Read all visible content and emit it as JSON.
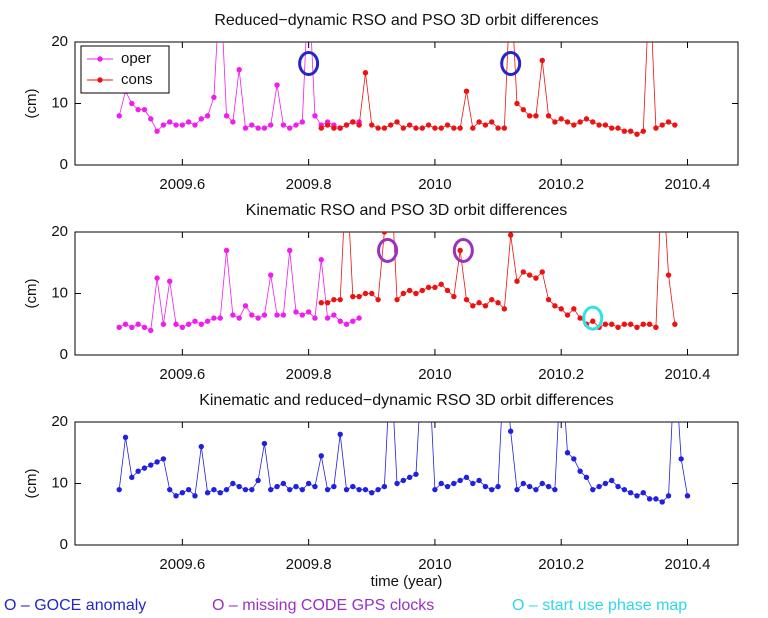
{
  "chart_data": [
    {
      "type": "line",
      "title": "Reduced−dynamic RSO and PSO 3D orbit differences",
      "ylabel": "(cm)",
      "xlim": [
        2009.43,
        2010.48
      ],
      "ylim": [
        0,
        20
      ],
      "xticks": [
        2009.6,
        2009.8,
        2010,
        2010.2,
        2010.4
      ],
      "yticks": [
        0,
        10,
        20
      ],
      "legend": "upper left",
      "series": [
        {
          "name": "oper",
          "color": "#f01cf0",
          "x": [
            2009.5,
            2009.51,
            2009.52,
            2009.53,
            2009.54,
            2009.55,
            2009.56,
            2009.57,
            2009.58,
            2009.59,
            2009.6,
            2009.61,
            2009.62,
            2009.63,
            2009.64,
            2009.65,
            2009.66,
            2009.67,
            2009.68,
            2009.69,
            2009.7,
            2009.71,
            2009.72,
            2009.73,
            2009.74,
            2009.75,
            2009.76,
            2009.77,
            2009.78,
            2009.79,
            2009.8,
            2009.81,
            2009.82,
            2009.83,
            2009.84,
            2009.85,
            2009.86,
            2009.87,
            2009.88
          ],
          "values": [
            8,
            12,
            10,
            9,
            9,
            7.5,
            5.5,
            6.5,
            7,
            6.5,
            6.5,
            7,
            6.5,
            7.5,
            8,
            11,
            30,
            8,
            7,
            15.5,
            6,
            6.5,
            6,
            6,
            6.5,
            13,
            6.5,
            6,
            6.5,
            7,
            30,
            8,
            6.5,
            7,
            6.5,
            6,
            6.5,
            7,
            7
          ]
        },
        {
          "name": "cons",
          "color": "#ee1111",
          "x": [
            2009.82,
            2009.83,
            2009.84,
            2009.85,
            2009.86,
            2009.87,
            2009.88,
            2009.89,
            2009.9,
            2009.91,
            2009.92,
            2009.93,
            2009.94,
            2009.95,
            2009.96,
            2009.97,
            2009.98,
            2009.99,
            2010,
            2010.01,
            2010.02,
            2010.03,
            2010.04,
            2010.05,
            2010.06,
            2010.07,
            2010.08,
            2010.09,
            2010.1,
            2010.11,
            2010.12,
            2010.13,
            2010.14,
            2010.15,
            2010.16,
            2010.17,
            2010.18,
            2010.19,
            2010.2,
            2010.21,
            2010.22,
            2010.23,
            2010.24,
            2010.25,
            2010.26,
            2010.27,
            2010.28,
            2010.29,
            2010.3,
            2010.31,
            2010.32,
            2010.33,
            2010.34,
            2010.35,
            2010.36,
            2010.37,
            2010.38
          ],
          "values": [
            6,
            6.5,
            6,
            6,
            6.5,
            7,
            6.5,
            15,
            6.5,
            6,
            6,
            6.5,
            7,
            6,
            6.5,
            6,
            6,
            6.5,
            6,
            6,
            6.5,
            6,
            6,
            12,
            6,
            7,
            6.5,
            7,
            6,
            6,
            30,
            10,
            9,
            8,
            8,
            17,
            8,
            7,
            7.5,
            7,
            6.5,
            7,
            7.5,
            7,
            6.5,
            6.5,
            6,
            6,
            5.5,
            5.5,
            5,
            5.5,
            30,
            6,
            6.5,
            7,
            6.5
          ]
        }
      ],
      "markers": [
        {
          "x": 2009.8,
          "y": 16.5,
          "color": "#2626c8"
        },
        {
          "x": 2010.12,
          "y": 16.5,
          "color": "#2626c8"
        }
      ]
    },
    {
      "type": "line",
      "title": "Kinematic RSO and PSO 3D orbit differences",
      "ylabel": "(cm)",
      "xlim": [
        2009.43,
        2010.48
      ],
      "ylim": [
        0,
        20
      ],
      "xticks": [
        2009.6,
        2009.8,
        2010,
        2010.2,
        2010.4
      ],
      "yticks": [
        0,
        10,
        20
      ],
      "series": [
        {
          "name": "oper",
          "color": "#f01cf0",
          "x": [
            2009.5,
            2009.51,
            2009.52,
            2009.53,
            2009.54,
            2009.55,
            2009.56,
            2009.57,
            2009.58,
            2009.59,
            2009.6,
            2009.61,
            2009.62,
            2009.63,
            2009.64,
            2009.65,
            2009.66,
            2009.67,
            2009.68,
            2009.69,
            2009.7,
            2009.71,
            2009.72,
            2009.73,
            2009.74,
            2009.75,
            2009.76,
            2009.77,
            2009.78,
            2009.79,
            2009.8,
            2009.81,
            2009.82,
            2009.83,
            2009.84,
            2009.85,
            2009.86,
            2009.87,
            2009.88
          ],
          "values": [
            4.5,
            5,
            4.5,
            5,
            4.5,
            4,
            12.5,
            5,
            12,
            5,
            4.5,
            5,
            5.5,
            5,
            5.5,
            6,
            6,
            17,
            6.5,
            6,
            8,
            6.5,
            6,
            6.5,
            13,
            6.5,
            6.5,
            17,
            7,
            6.5,
            7,
            6,
            15.5,
            6,
            6.5,
            5.5,
            5,
            5.5,
            6
          ]
        },
        {
          "name": "cons",
          "color": "#ee1111",
          "x": [
            2009.82,
            2009.83,
            2009.84,
            2009.85,
            2009.86,
            2009.87,
            2009.88,
            2009.89,
            2009.9,
            2009.91,
            2009.92,
            2009.93,
            2009.94,
            2009.95,
            2009.96,
            2009.97,
            2009.98,
            2009.99,
            2010,
            2010.01,
            2010.02,
            2010.03,
            2010.04,
            2010.05,
            2010.06,
            2010.07,
            2010.08,
            2010.09,
            2010.1,
            2010.11,
            2010.12,
            2010.13,
            2010.14,
            2010.15,
            2010.16,
            2010.17,
            2010.18,
            2010.19,
            2010.2,
            2010.21,
            2010.22,
            2010.23,
            2010.24,
            2010.25,
            2010.26,
            2010.27,
            2010.28,
            2010.29,
            2010.3,
            2010.31,
            2010.32,
            2010.33,
            2010.34,
            2010.35,
            2010.36,
            2010.37,
            2010.38
          ],
          "values": [
            8.5,
            8.5,
            9,
            9,
            30,
            9.5,
            9.5,
            10,
            10,
            9,
            20,
            30,
            9,
            10,
            10.5,
            10,
            10.5,
            11,
            11,
            11.5,
            10.5,
            9.5,
            17,
            9,
            8,
            8.5,
            8,
            9,
            8.5,
            7.5,
            19.5,
            12,
            13.5,
            13,
            12.5,
            13.5,
            9,
            8,
            7.5,
            6.5,
            7.5,
            6,
            5,
            5.5,
            4.5,
            5,
            5,
            4.5,
            5,
            5,
            4.5,
            5,
            5,
            4.5,
            30,
            13,
            5
          ]
        }
      ],
      "markers": [
        {
          "x": 2009.925,
          "y": 17,
          "color": "#9a30c0"
        },
        {
          "x": 2010.045,
          "y": 17,
          "color": "#9a30c0"
        },
        {
          "x": 2010.25,
          "y": 6,
          "color": "#30e0ea"
        }
      ]
    },
    {
      "type": "line",
      "title": "Kinematic and reduced−dynamic RSO 3D orbit differences",
      "ylabel": "(cm)",
      "xlabel": "time (year)",
      "xlim": [
        2009.43,
        2010.48
      ],
      "ylim": [
        0,
        20
      ],
      "xticks": [
        2009.6,
        2009.8,
        2010,
        2010.2,
        2010.4
      ],
      "yticks": [
        0,
        10,
        20
      ],
      "series": [
        {
          "color": "#2020e0",
          "x": [
            2009.5,
            2009.51,
            2009.52,
            2009.53,
            2009.54,
            2009.55,
            2009.56,
            2009.57,
            2009.58,
            2009.59,
            2009.6,
            2009.61,
            2009.62,
            2009.63,
            2009.64,
            2009.65,
            2009.66,
            2009.67,
            2009.68,
            2009.69,
            2009.7,
            2009.71,
            2009.72,
            2009.73,
            2009.74,
            2009.75,
            2009.76,
            2009.77,
            2009.78,
            2009.79,
            2009.8,
            2009.81,
            2009.82,
            2009.83,
            2009.84,
            2009.85,
            2009.86,
            2009.87,
            2009.88,
            2009.89,
            2009.9,
            2009.91,
            2009.92,
            2009.93,
            2009.94,
            2009.95,
            2009.96,
            2009.97,
            2009.98,
            2009.99,
            2010,
            2010.01,
            2010.02,
            2010.03,
            2010.04,
            2010.05,
            2010.06,
            2010.07,
            2010.08,
            2010.09,
            2010.1,
            2010.11,
            2010.12,
            2010.13,
            2010.14,
            2010.15,
            2010.16,
            2010.17,
            2010.18,
            2010.19,
            2010.2,
            2010.21,
            2010.22,
            2010.23,
            2010.24,
            2010.25,
            2010.26,
            2010.27,
            2010.28,
            2010.29,
            2010.3,
            2010.31,
            2010.32,
            2010.33,
            2010.34,
            2010.35,
            2010.36,
            2010.37,
            2010.38,
            2010.39,
            2010.4
          ],
          "values": [
            9,
            17.5,
            11,
            12,
            12.5,
            13,
            13.5,
            14,
            9,
            8,
            8.5,
            9,
            8,
            16,
            8.5,
            9,
            8.5,
            9,
            10,
            9.5,
            9,
            9,
            10.5,
            16.5,
            9,
            9.5,
            10,
            9,
            9.5,
            9,
            10,
            9.5,
            14.5,
            9,
            9.5,
            18,
            9,
            9.5,
            9,
            9,
            8.5,
            9,
            9.5,
            30,
            10,
            10.5,
            11,
            11.5,
            30,
            30,
            9,
            10,
            9.5,
            10,
            10.5,
            11,
            10,
            10.5,
            9.5,
            9,
            9.5,
            30,
            18.5,
            9,
            10,
            9.5,
            9,
            10,
            9.5,
            9,
            30,
            15,
            14,
            12,
            11,
            9,
            9.5,
            10,
            10.5,
            9.5,
            9,
            8.5,
            8,
            8.5,
            7.5,
            7.5,
            7,
            8,
            30,
            14,
            8
          ]
        }
      ]
    }
  ],
  "footnotes": [
    {
      "text": "O – GOCE anomaly",
      "color": "#2626c8"
    },
    {
      "text": "O – missing CODE GPS clocks",
      "color": "#9a30c0"
    },
    {
      "text": "O – start use phase map",
      "color": "#30d8e4"
    }
  ]
}
